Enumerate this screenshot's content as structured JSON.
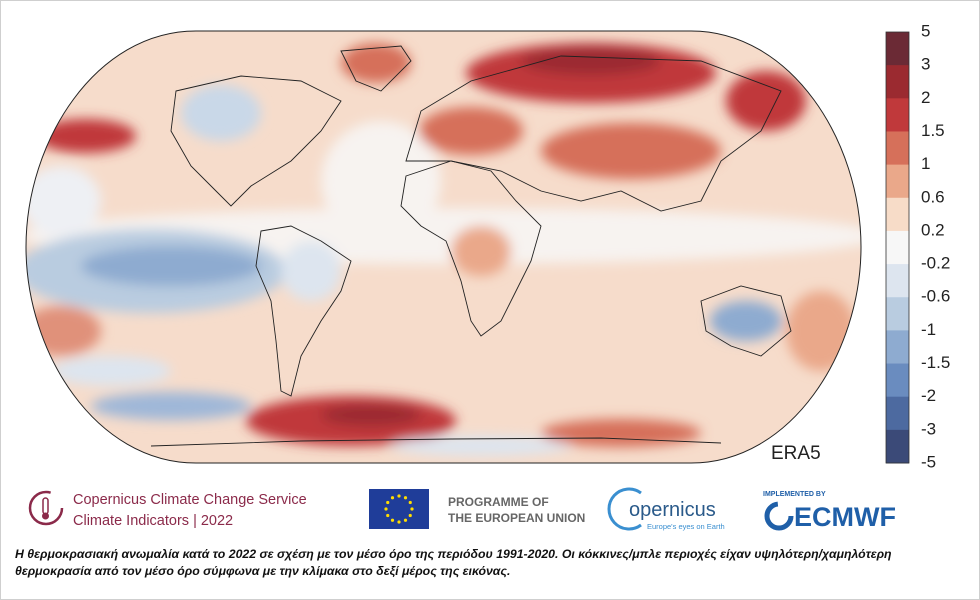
{
  "map_label": "ERA5",
  "colorbar": {
    "labels": [
      5,
      3,
      2,
      1.5,
      1,
      0.6,
      0.2,
      -0.2,
      -0.6,
      -1,
      -1.5,
      -2,
      -3,
      -5
    ],
    "colors": [
      "#6b2a35",
      "#9b2a30",
      "#c0393b",
      "#d6705a",
      "#eaa88a",
      "#f7dcc8",
      "#f7f7f7",
      "#dde5ef",
      "#b9cce0",
      "#8eabd0",
      "#6a8cbf",
      "#4d6aa0",
      "#3b4a78"
    ]
  },
  "logos": {
    "c3s_line1": "Copernicus Climate Change Service",
    "c3s_line2": "Climate Indicators | 2022",
    "eu_line1": "PROGRAMME OF",
    "eu_line2": "THE EUROPEAN UNION",
    "copernicus": "opernicus",
    "copernicus_tagline": "Europe's eyes on Earth",
    "implemented_by": "IMPLEMENTED BY",
    "ecmwf": "ECMWF"
  },
  "caption": "Η θερμοκρασιακή ανωμαλία κατά το 2022 σε σχέση με τον μέσο όρο της περιόδου 1991-2020. Οι κόκκινες/μπλε περιοχές είχαν υψηλότερη/χαμηλότερη θερμοκρασία από τον μέσο όρο σύμφωνα με την κλίμακα στο δεξί μέρος της εικόνας."
}
